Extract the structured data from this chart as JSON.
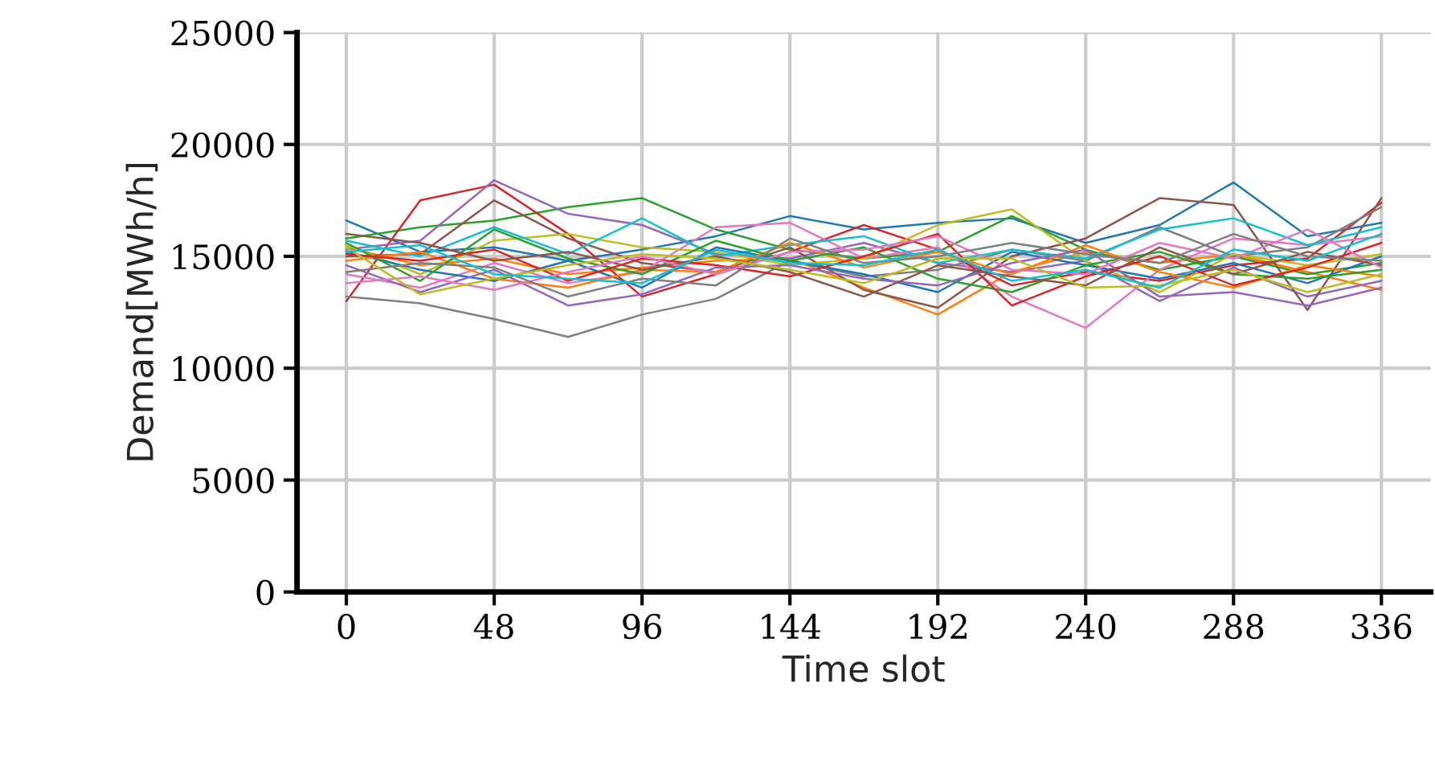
{
  "chart_data": {
    "type": "line",
    "xlabel": "Time slot",
    "ylabel": "Demand[MWh/h]",
    "x": [
      0,
      24,
      48,
      72,
      96,
      120,
      144,
      168,
      192,
      216,
      240,
      264,
      288,
      312,
      336
    ],
    "xlim": [
      -16,
      352
    ],
    "ylim": [
      0,
      25000
    ],
    "xticks": [
      0,
      48,
      96,
      144,
      192,
      240,
      288,
      336
    ],
    "yticks": [
      0,
      5000,
      10000,
      15000,
      20000,
      25000
    ],
    "grid": true,
    "marker": "none",
    "line_style": "solid",
    "series": [
      {
        "color": "#1f77b4",
        "values": [
          16600,
          15200,
          15400,
          14800,
          15300,
          15900,
          16800,
          16200,
          16500,
          16700,
          15600,
          16400,
          18300,
          15900,
          16500
        ]
      },
      {
        "color": "#ff7f0e",
        "values": [
          15400,
          14600,
          14900,
          14200,
          14500,
          14800,
          14900,
          13600,
          12400,
          14300,
          15200,
          14700,
          15100,
          14300,
          13500
        ]
      },
      {
        "color": "#2ca02c",
        "values": [
          15800,
          16300,
          16600,
          17200,
          17600,
          16200,
          15300,
          14900,
          15200,
          16800,
          15300,
          14400,
          15000,
          14200,
          14700
        ]
      },
      {
        "color": "#d62728",
        "values": [
          13000,
          17500,
          18200,
          16000,
          13200,
          14200,
          15200,
          16400,
          15300,
          13700,
          14300,
          13900,
          14600,
          14900,
          17400
        ]
      },
      {
        "color": "#9467bd",
        "values": [
          15300,
          15700,
          18400,
          16900,
          16400,
          15100,
          14900,
          15600,
          14700,
          14300,
          14800,
          13000,
          14500,
          13200,
          13900
        ]
      },
      {
        "color": "#8c564b",
        "values": [
          15000,
          15100,
          17500,
          15800,
          14700,
          14300,
          15400,
          13500,
          12700,
          15000,
          15800,
          17600,
          17300,
          12600,
          17600
        ]
      },
      {
        "color": "#e377c2",
        "values": [
          14200,
          13600,
          14700,
          13800,
          14300,
          16300,
          16500,
          14900,
          15400,
          13200,
          11800,
          14400,
          15800,
          15500,
          15900
        ]
      },
      {
        "color": "#7f7f7f",
        "values": [
          13200,
          12900,
          12200,
          11400,
          12400,
          13100,
          14800,
          14100,
          14400,
          15300,
          14800,
          16300,
          15000,
          15400,
          17200
        ]
      },
      {
        "color": "#bcbd22",
        "values": [
          15500,
          14200,
          15700,
          16000,
          15400,
          15200,
          14600,
          14900,
          16400,
          17100,
          14800,
          13400,
          15100,
          14600,
          15100
        ]
      },
      {
        "color": "#17becf",
        "values": [
          15700,
          15000,
          16300,
          15100,
          16700,
          15000,
          15500,
          15900,
          14700,
          15300,
          14900,
          16200,
          16700,
          15500,
          16300
        ]
      },
      {
        "color": "#1f77b4",
        "values": [
          15200,
          14400,
          13900,
          14800,
          13600,
          15400,
          14800,
          14200,
          13400,
          15200,
          14600,
          14000,
          14700,
          13800,
          15000
        ]
      },
      {
        "color": "#ff7f0e",
        "values": [
          14800,
          15200,
          14000,
          13600,
          14400,
          14300,
          15600,
          14500,
          15200,
          14200,
          15500,
          14300,
          13600,
          14600,
          14100
        ]
      },
      {
        "color": "#2ca02c",
        "values": [
          15600,
          13900,
          16200,
          14900,
          14200,
          15700,
          14800,
          15400,
          14000,
          13400,
          14600,
          15200,
          14200,
          14000,
          14400
        ]
      },
      {
        "color": "#d62728",
        "values": [
          15100,
          14800,
          15300,
          13900,
          14900,
          14600,
          14100,
          15000,
          16000,
          12800,
          14100,
          15000,
          13700,
          14500,
          15600
        ]
      },
      {
        "color": "#9467bd",
        "values": [
          14600,
          13400,
          14400,
          12800,
          13300,
          14500,
          14600,
          14000,
          13700,
          14700,
          15300,
          13200,
          13400,
          12800,
          13600
        ]
      },
      {
        "color": "#8c564b",
        "values": [
          16000,
          15600,
          14800,
          15200,
          14400,
          15000,
          14300,
          13200,
          14600,
          14100,
          13700,
          15400,
          14200,
          15200,
          14600
        ]
      },
      {
        "color": "#e377c2",
        "values": [
          13800,
          14100,
          13500,
          14300,
          15000,
          14200,
          15200,
          15300,
          15900,
          14400,
          14200,
          15600,
          14900,
          16200,
          14500
        ]
      },
      {
        "color": "#7f7f7f",
        "values": [
          14300,
          14700,
          14500,
          13200,
          14000,
          13700,
          15800,
          14700,
          15000,
          15600,
          15100,
          14700,
          16000,
          15000,
          14800
        ]
      },
      {
        "color": "#bcbd22",
        "values": [
          15400,
          13300,
          14000,
          14600,
          15100,
          14900,
          14400,
          13800,
          14900,
          14900,
          13600,
          13700,
          14400,
          13400,
          14200
        ]
      },
      {
        "color": "#17becf",
        "values": [
          15200,
          15500,
          14200,
          14000,
          13800,
          15300,
          14700,
          14600,
          15300,
          13900,
          14400,
          13600,
          15300,
          14800,
          16000
        ]
      }
    ]
  }
}
